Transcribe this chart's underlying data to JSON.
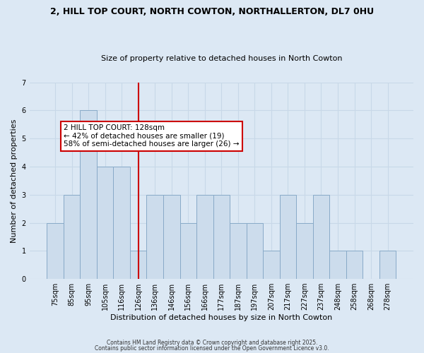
{
  "title": "2, HILL TOP COURT, NORTH COWTON, NORTHALLERTON, DL7 0HU",
  "subtitle": "Size of property relative to detached houses in North Cowton",
  "xlabel": "Distribution of detached houses by size in North Cowton",
  "ylabel": "Number of detached properties",
  "bar_labels": [
    "75sqm",
    "85sqm",
    "95sqm",
    "105sqm",
    "116sqm",
    "126sqm",
    "136sqm",
    "146sqm",
    "156sqm",
    "166sqm",
    "177sqm",
    "187sqm",
    "197sqm",
    "207sqm",
    "217sqm",
    "227sqm",
    "237sqm",
    "248sqm",
    "258sqm",
    "268sqm",
    "278sqm"
  ],
  "bar_heights": [
    2,
    3,
    6,
    4,
    4,
    1,
    3,
    3,
    2,
    3,
    3,
    2,
    2,
    1,
    3,
    2,
    3,
    1,
    1,
    0,
    1
  ],
  "bar_color": "#ccdcec",
  "bar_edge_color": "#88aac8",
  "red_line_index": 5,
  "red_line_color": "#cc0000",
  "ylim": [
    0,
    7
  ],
  "yticks": [
    0,
    1,
    2,
    3,
    4,
    5,
    6,
    7
  ],
  "annotation_title": "2 HILL TOP COURT: 128sqm",
  "annotation_line1": "← 42% of detached houses are smaller (19)",
  "annotation_line2": "58% of semi-detached houses are larger (26) →",
  "annotation_box_color": "#ffffff",
  "annotation_box_edge": "#cc0000",
  "grid_color": "#c8d8e8",
  "background_color": "#dce8f4",
  "footer1": "Contains HM Land Registry data © Crown copyright and database right 2025.",
  "footer2": "Contains public sector information licensed under the Open Government Licence v3.0."
}
